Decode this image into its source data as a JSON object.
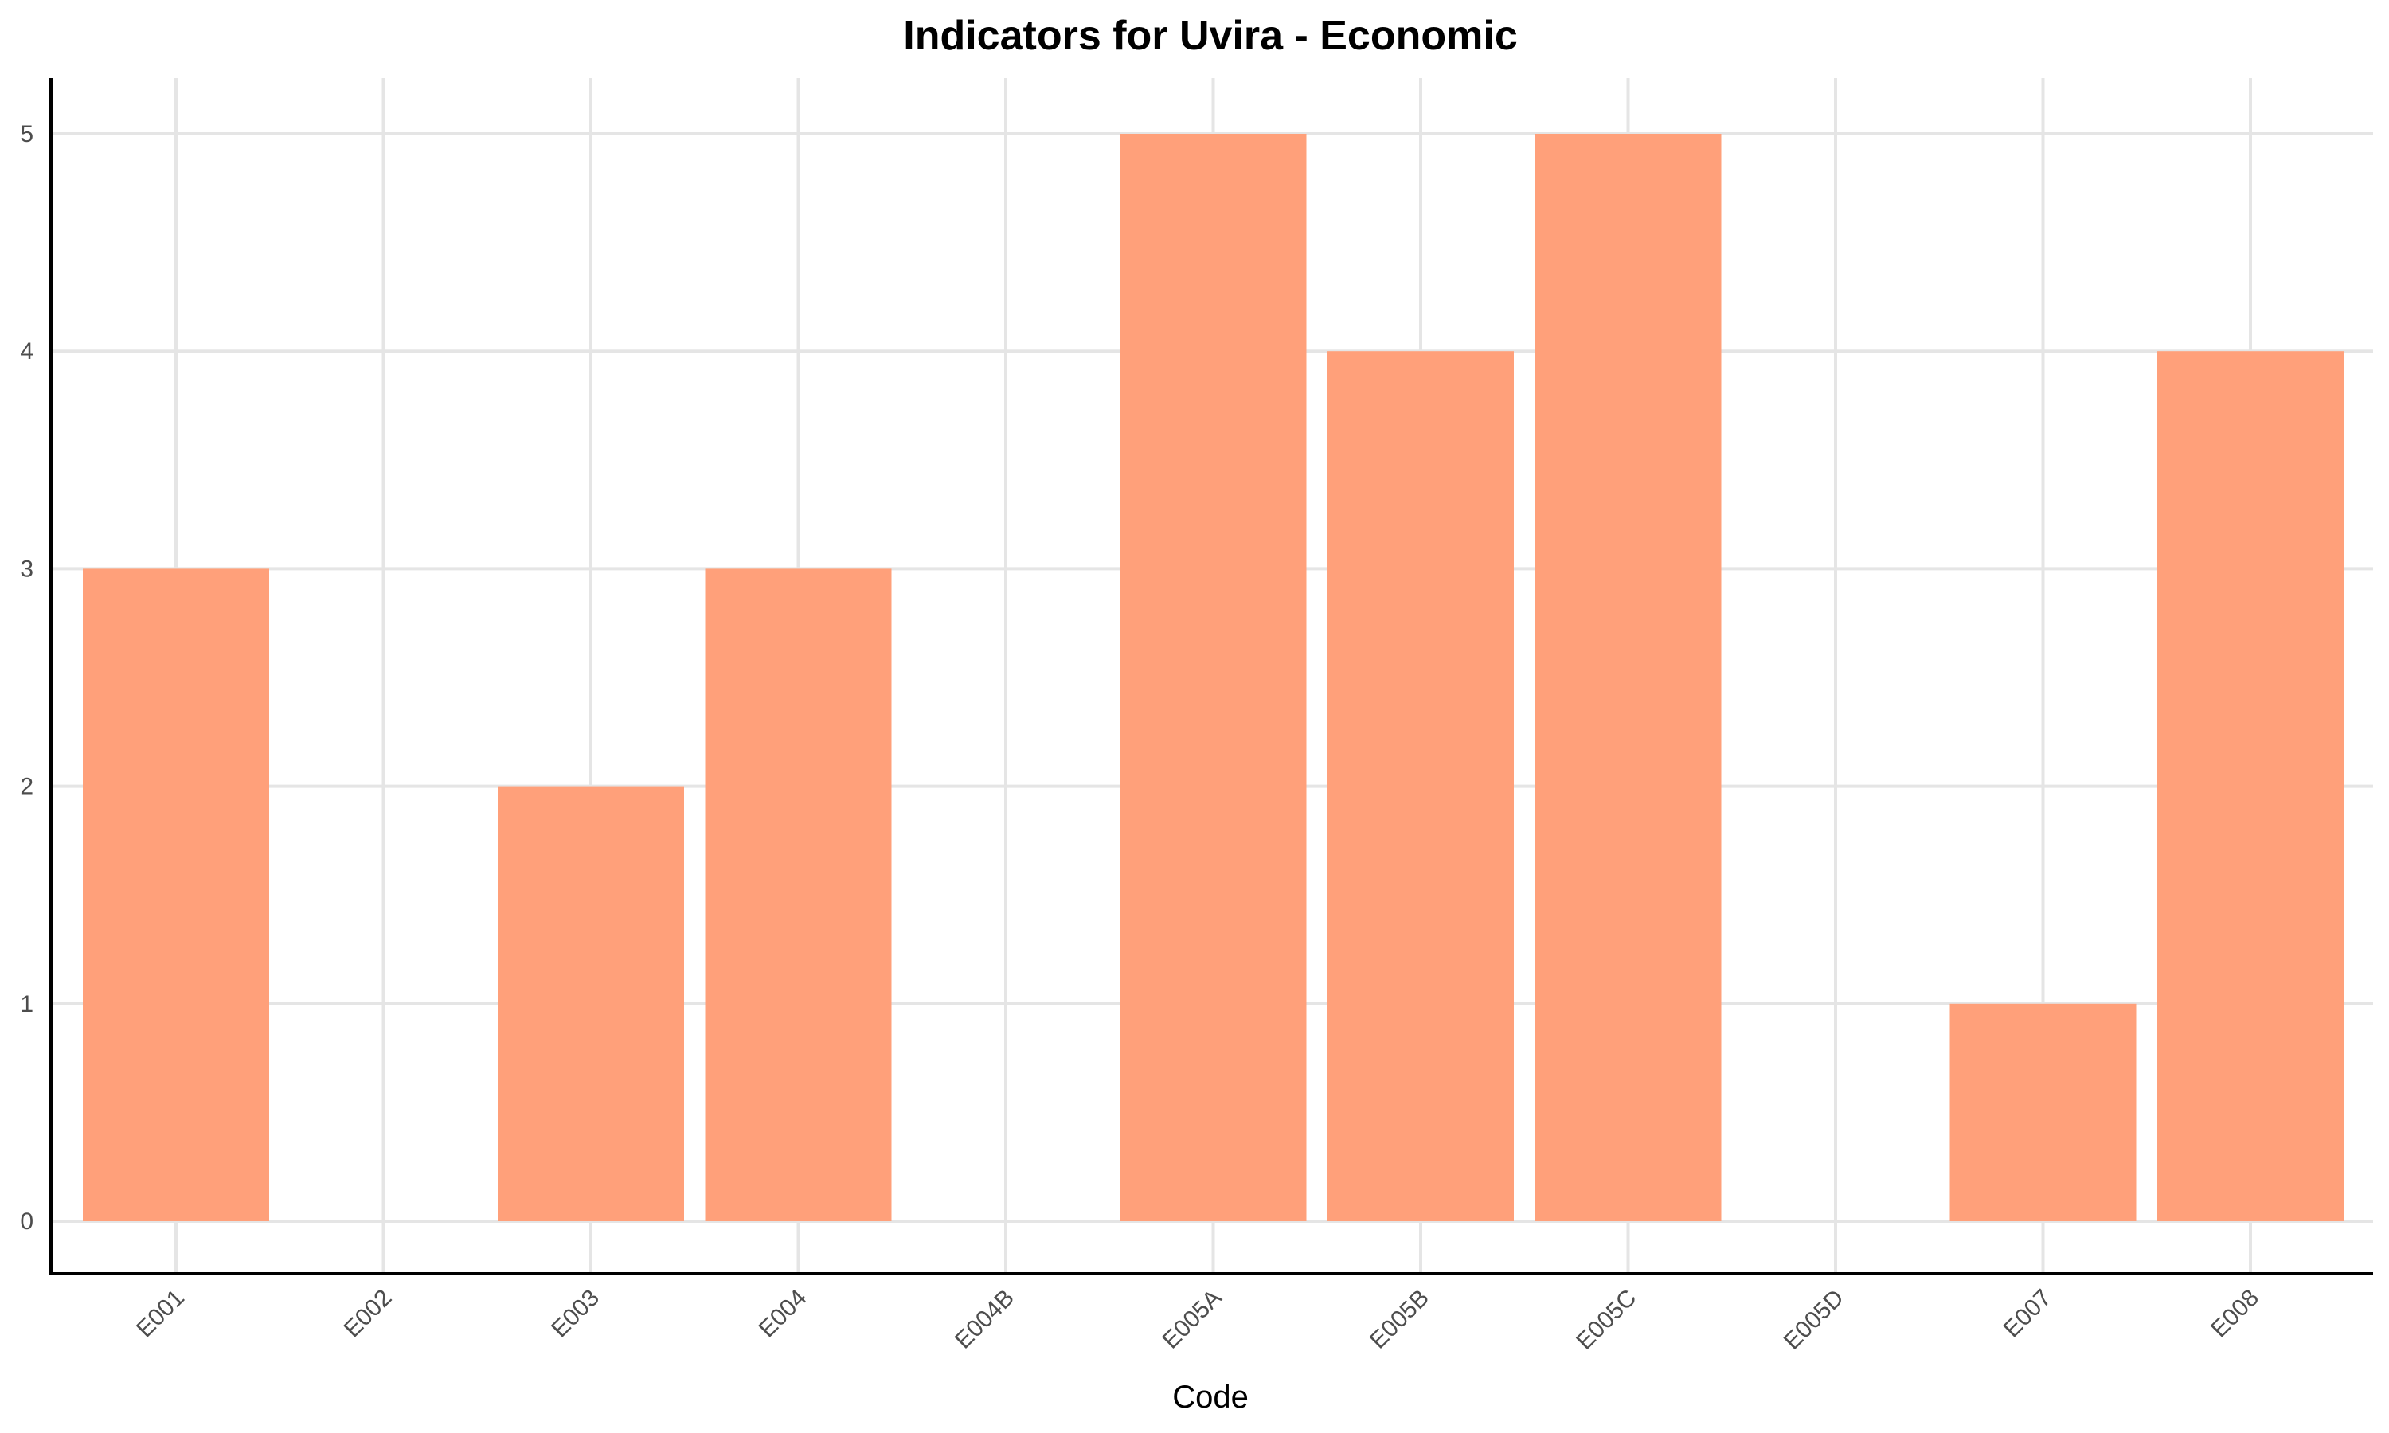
{
  "chart_data": {
    "type": "bar",
    "title": "Indicators for Uvira - Economic",
    "xlabel": "Code",
    "ylabel": "",
    "categories": [
      "E001",
      "E002",
      "E003",
      "E004",
      "E004B",
      "E005A",
      "E005B",
      "E005C",
      "E005D",
      "E007",
      "E008"
    ],
    "values": [
      3,
      0,
      2,
      3,
      0,
      5,
      4,
      5,
      0,
      1,
      4
    ],
    "ylim": [
      0,
      5
    ],
    "yticks": [
      0,
      1,
      2,
      3,
      4,
      5
    ],
    "grid": true,
    "legend": "none",
    "bar_color": "#ffa07a",
    "grid_color": "#e5e5e5"
  }
}
